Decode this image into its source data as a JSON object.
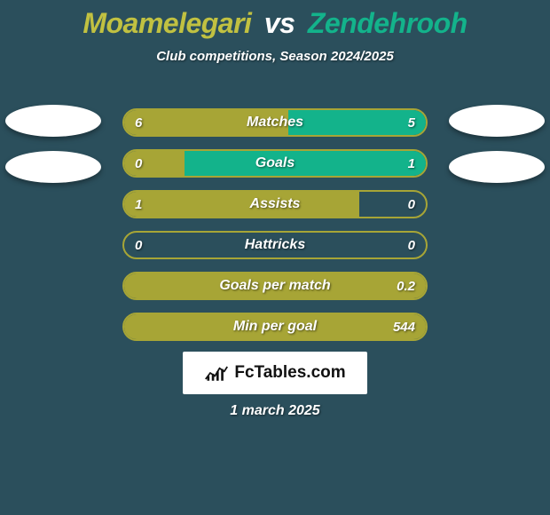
{
  "title": {
    "player1": "Moamelegari",
    "vs": "vs",
    "player2": "Zendehrooh"
  },
  "subtitle": "Club competitions, Season 2024/2025",
  "colors": {
    "p1": "#c1c141",
    "p2": "#13b38b",
    "p1_fill": "#a7a536",
    "p2_fill": "#13b38b",
    "row_border": "#a7a536",
    "background": "#2b4f5c",
    "text": "#ffffff"
  },
  "rows": [
    {
      "label": "Matches",
      "left": "6",
      "right": "5",
      "left_pct": 54.5,
      "right_pct": 45.5
    },
    {
      "label": "Goals",
      "left": "0",
      "right": "1",
      "left_pct": 20,
      "right_pct": 80
    },
    {
      "label": "Assists",
      "left": "1",
      "right": "0",
      "left_pct": 78,
      "right_pct": 0
    },
    {
      "label": "Hattricks",
      "left": "0",
      "right": "0",
      "left_pct": 0,
      "right_pct": 0
    },
    {
      "label": "Goals per match",
      "left": "",
      "right": "0.2",
      "left_pct": 100,
      "right_pct": 0
    },
    {
      "label": "Min per goal",
      "left": "",
      "right": "544",
      "left_pct": 100,
      "right_pct": 0
    }
  ],
  "brand": "FcTables.com",
  "date": "1 march 2025"
}
